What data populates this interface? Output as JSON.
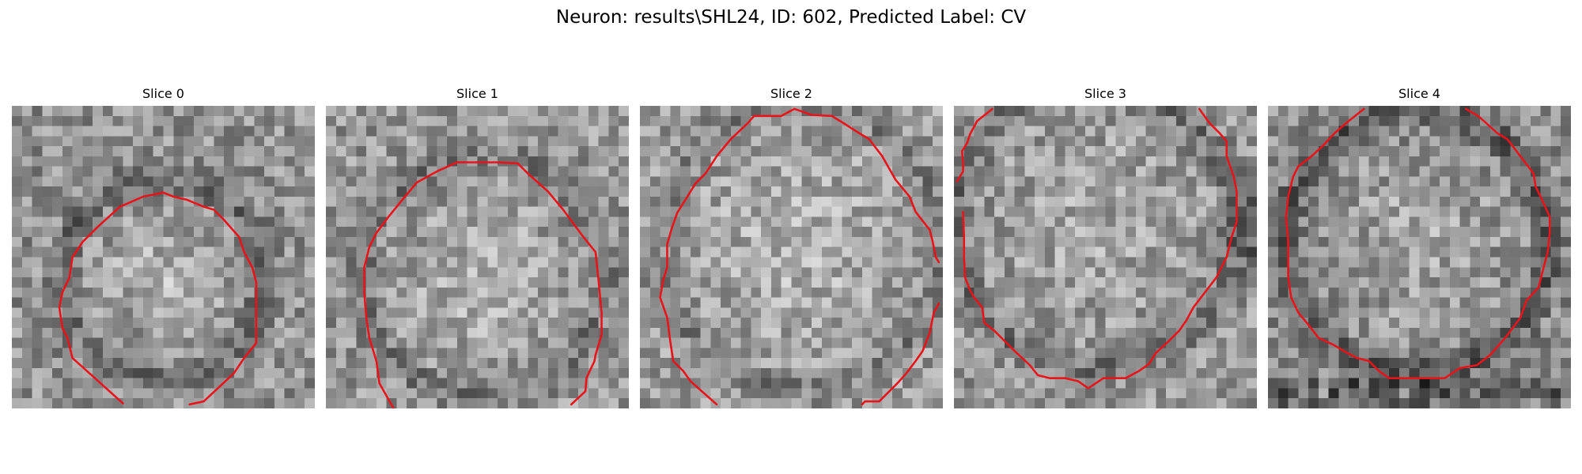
{
  "figure": {
    "title": "Neuron: results\\SHL24, ID: 602, Predicted Label: CV",
    "contour_color": "#e8141c",
    "colormap": "gray",
    "panels": [
      {
        "title": "Slice 0",
        "contour_visible": true
      },
      {
        "title": "Slice 1",
        "contour_visible": true
      },
      {
        "title": "Slice 2",
        "contour_visible": true
      },
      {
        "title": "Slice 3",
        "contour_visible": true
      },
      {
        "title": "Slice 4",
        "contour_visible": true
      }
    ]
  }
}
